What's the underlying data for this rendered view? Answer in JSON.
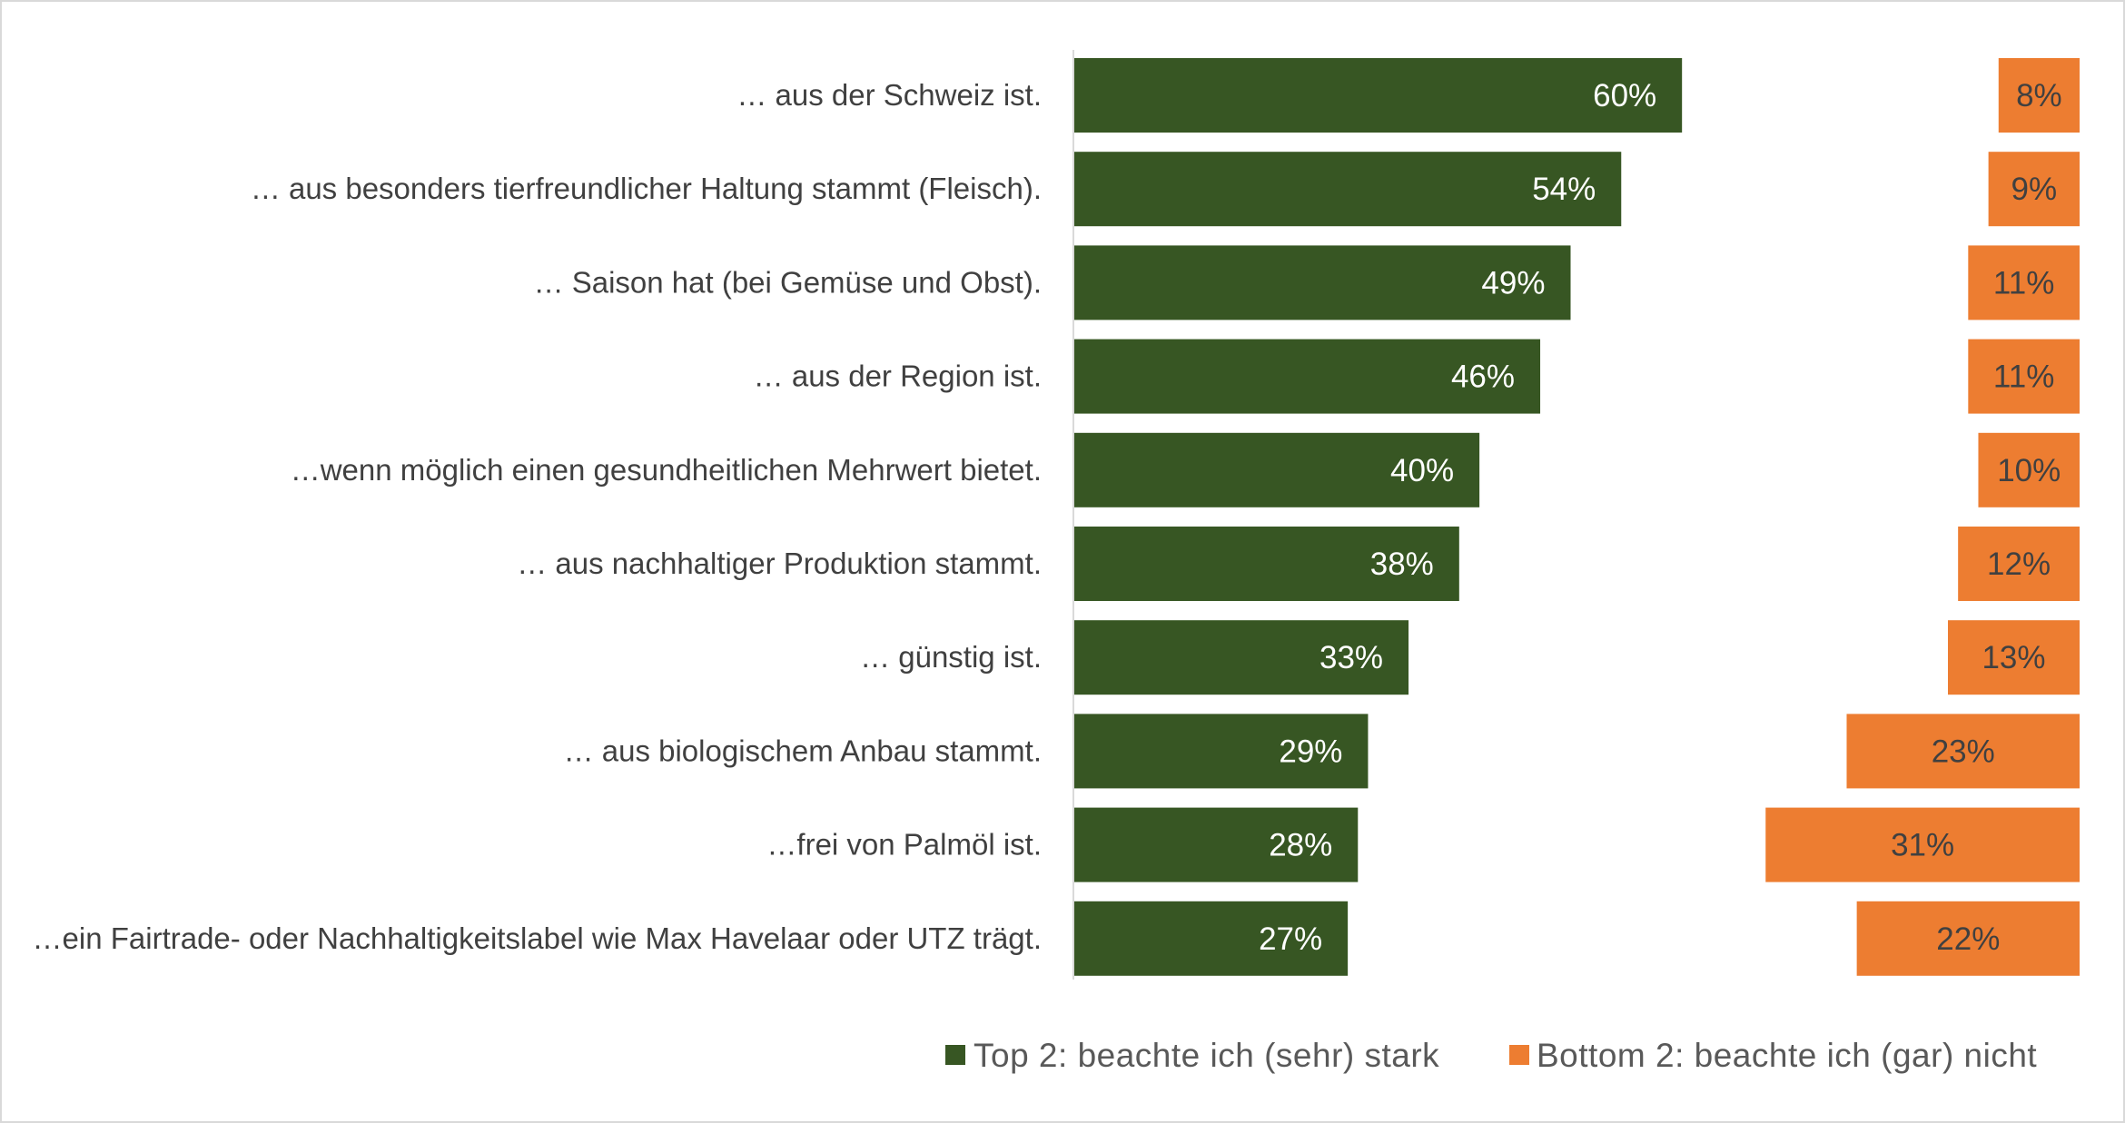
{
  "colors": {
    "top2": "#375623",
    "bottom2": "#ED7D31",
    "top2_label": "#ffffff",
    "bottom2_label": "#404040"
  },
  "legend": {
    "top2_label": "Top 2: beachte ich (sehr) stark",
    "bottom2_label": "Bottom 2: beachte ich (gar) nicht"
  },
  "chart_data": {
    "type": "bar",
    "orientation": "horizontal",
    "categories": [
      "… aus der Schweiz ist.",
      "… aus besonders tierfreundlicher Haltung stammt (Fleisch).",
      "… Saison hat (bei Gemüse und Obst).",
      "… aus der Region ist.",
      "…wenn möglich einen gesundheitlichen Mehrwert bietet.",
      "… aus nachhaltiger Produktion stammt.",
      "… günstig ist.",
      "… aus biologischem Anbau stammt.",
      "…frei von Palmöl ist.",
      "…ein Fairtrade- oder Nachhaltigkeitslabel wie Max Havelaar oder UTZ trägt."
    ],
    "series": [
      {
        "name": "Top 2: beachte ich (sehr) stark",
        "values": [
          60,
          54,
          49,
          46,
          40,
          38,
          33,
          29,
          28,
          27
        ],
        "labels": [
          "60%",
          "54%",
          "49%",
          "46%",
          "40%",
          "38%",
          "33%",
          "29%",
          "28%",
          "27%"
        ]
      },
      {
        "name": "Bottom 2: beachte ich (gar) nicht",
        "values": [
          8,
          9,
          11,
          11,
          10,
          12,
          13,
          23,
          31,
          22
        ],
        "labels": [
          "8%",
          "9%",
          "11%",
          "11%",
          "10%",
          "12%",
          "13%",
          "23%",
          "31%",
          "22%"
        ]
      }
    ],
    "title": "",
    "xlabel": "",
    "ylabel": "",
    "legend_position": "bottom",
    "grid": false
  }
}
